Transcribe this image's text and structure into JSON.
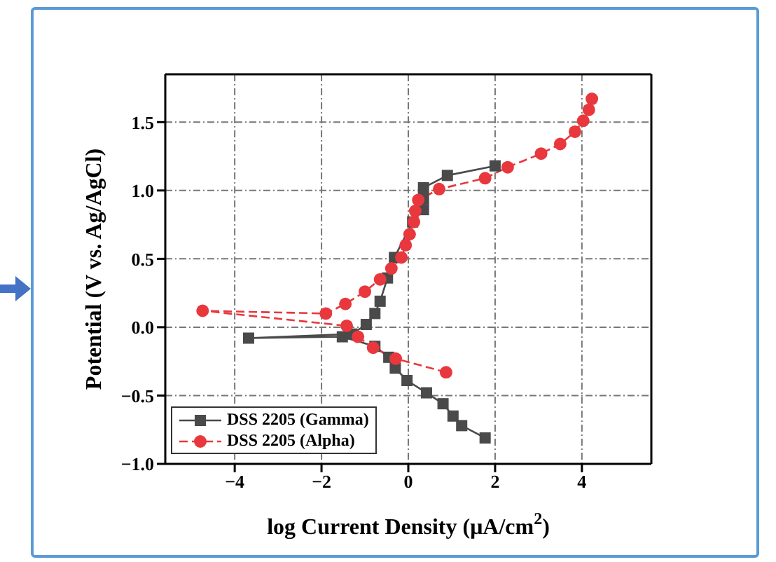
{
  "chart_data": {
    "type": "line",
    "xlabel": "log Current Density (μA/cm$^{2}$)",
    "ylabel": "Potential (V vs. Ag/AgCl)",
    "xlim": [
      -5.6,
      5.6
    ],
    "xticks": [
      {
        "value": -4,
        "label": "−4"
      },
      {
        "value": -2,
        "label": "−2"
      },
      0,
      2,
      4
    ],
    "ylim": [
      -1.0,
      1.85
    ],
    "yticks": [
      {
        "value": -1,
        "label": "−1.0"
      },
      {
        "value": -0.5,
        "label": "−0.5"
      },
      {
        "value": 0,
        "label": "0.0"
      },
      {
        "value": 0.5,
        "label": "0.5"
      },
      {
        "value": 1,
        "label": "1.0"
      },
      {
        "value": 1.5,
        "label": "1.5"
      }
    ],
    "grid": true,
    "legend": "bottom left",
    "series": [
      {
        "name": "DSS 2205 (Gamma)",
        "color": "#4a4a4a",
        "marker": "square",
        "line_style": "solid",
        "x": [
          1.77,
          1.23,
          1.03,
          0.8,
          0.42,
          -0.03,
          -0.3,
          -0.45,
          -0.77,
          -1.52,
          -3.68,
          -1.3,
          -0.97,
          -0.77,
          -0.65,
          -0.48,
          -0.32,
          0.1,
          0.35,
          0.35,
          0.35,
          0.9,
          2.0
        ],
        "values": [
          -0.81,
          -0.72,
          -0.65,
          -0.56,
          -0.48,
          -0.39,
          -0.3,
          -0.22,
          -0.14,
          -0.07,
          -0.08,
          -0.05,
          0.02,
          0.1,
          0.19,
          0.36,
          0.51,
          0.77,
          0.86,
          0.94,
          1.02,
          1.11,
          1.18
        ]
      },
      {
        "name": "DSS 2205 (Alpha)",
        "color": "#e8383d",
        "marker": "circle",
        "line_style": "dashed",
        "x": [
          0.87,
          -0.29,
          -0.81,
          -1.16,
          -1.42,
          -4.74,
          -1.9,
          -1.45,
          -1.0,
          -0.65,
          -0.39,
          -0.16,
          -0.06,
          0.03,
          0.13,
          0.16,
          0.23,
          0.71,
          1.77,
          2.29,
          3.06,
          3.5,
          3.84,
          4.03,
          4.16,
          4.23
        ],
        "values": [
          -0.33,
          -0.23,
          -0.15,
          -0.07,
          0.01,
          0.12,
          0.1,
          0.17,
          0.26,
          0.35,
          0.43,
          0.51,
          0.6,
          0.68,
          0.77,
          0.85,
          0.93,
          1.01,
          1.09,
          1.17,
          1.27,
          1.34,
          1.43,
          1.51,
          1.59,
          1.67
        ]
      }
    ]
  }
}
